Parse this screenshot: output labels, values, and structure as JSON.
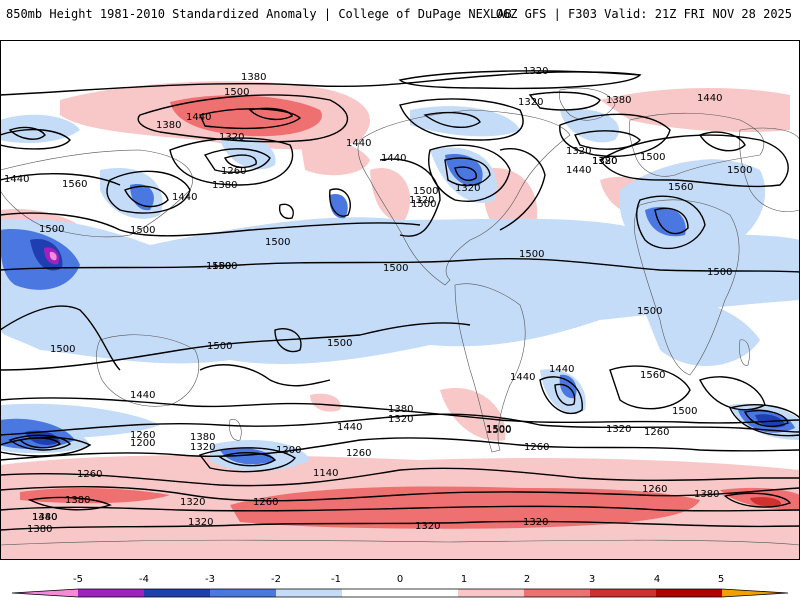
{
  "header": {
    "title": "850mb Height 1981-2010 Standardized Anomaly | College of DuPage NEXLAB",
    "run_info": "06Z GFS | F303 Valid: 21Z FRI NOV 28 2025"
  },
  "colors": {
    "neg5": "#f48ad8",
    "neg4": "#a020c0",
    "neg3": "#1f3fb0",
    "neg2": "#4a78e0",
    "neg1": "#c4dcf8",
    "pos1": "#f8c8c8",
    "pos2": "#ee7070",
    "pos3": "#d03030",
    "pos4": "#b00000",
    "pos5": "#f0a000"
  },
  "contour_labels": [
    "1380",
    "1320",
    "1500",
    "1440",
    "1380",
    "1320",
    "1320",
    "1380",
    "1320",
    "1440",
    "1440",
    "1560",
    "1440",
    "1320",
    "1260",
    "1380",
    "1440",
    "1500",
    "1500",
    "1560",
    "1500",
    "1320",
    "1500",
    "1500",
    "1440",
    "1320",
    "1380",
    "1440",
    "1560",
    "1500",
    "1500",
    "1500",
    "1500",
    "1500",
    "1500",
    "1500",
    "1500",
    "1500",
    "1500",
    "1440",
    "1440",
    "1440",
    "1440",
    "1500",
    "1560",
    "1500",
    "1380",
    "1320",
    "1320",
    "1260",
    "1380",
    "1260",
    "1200",
    "1320",
    "1200",
    "1260",
    "1140",
    "1260",
    "1260",
    "1380",
    "1320",
    "1260",
    "1380",
    "1320",
    "1440",
    "1380",
    "1320",
    "1320",
    "1260",
    "1380",
    "1500",
    "1500"
  ],
  "colorbar": {
    "ticks": [
      "-5",
      "-4",
      "-3",
      "-2",
      "-1",
      "0",
      "1",
      "2",
      "3",
      "4",
      "5"
    ]
  }
}
